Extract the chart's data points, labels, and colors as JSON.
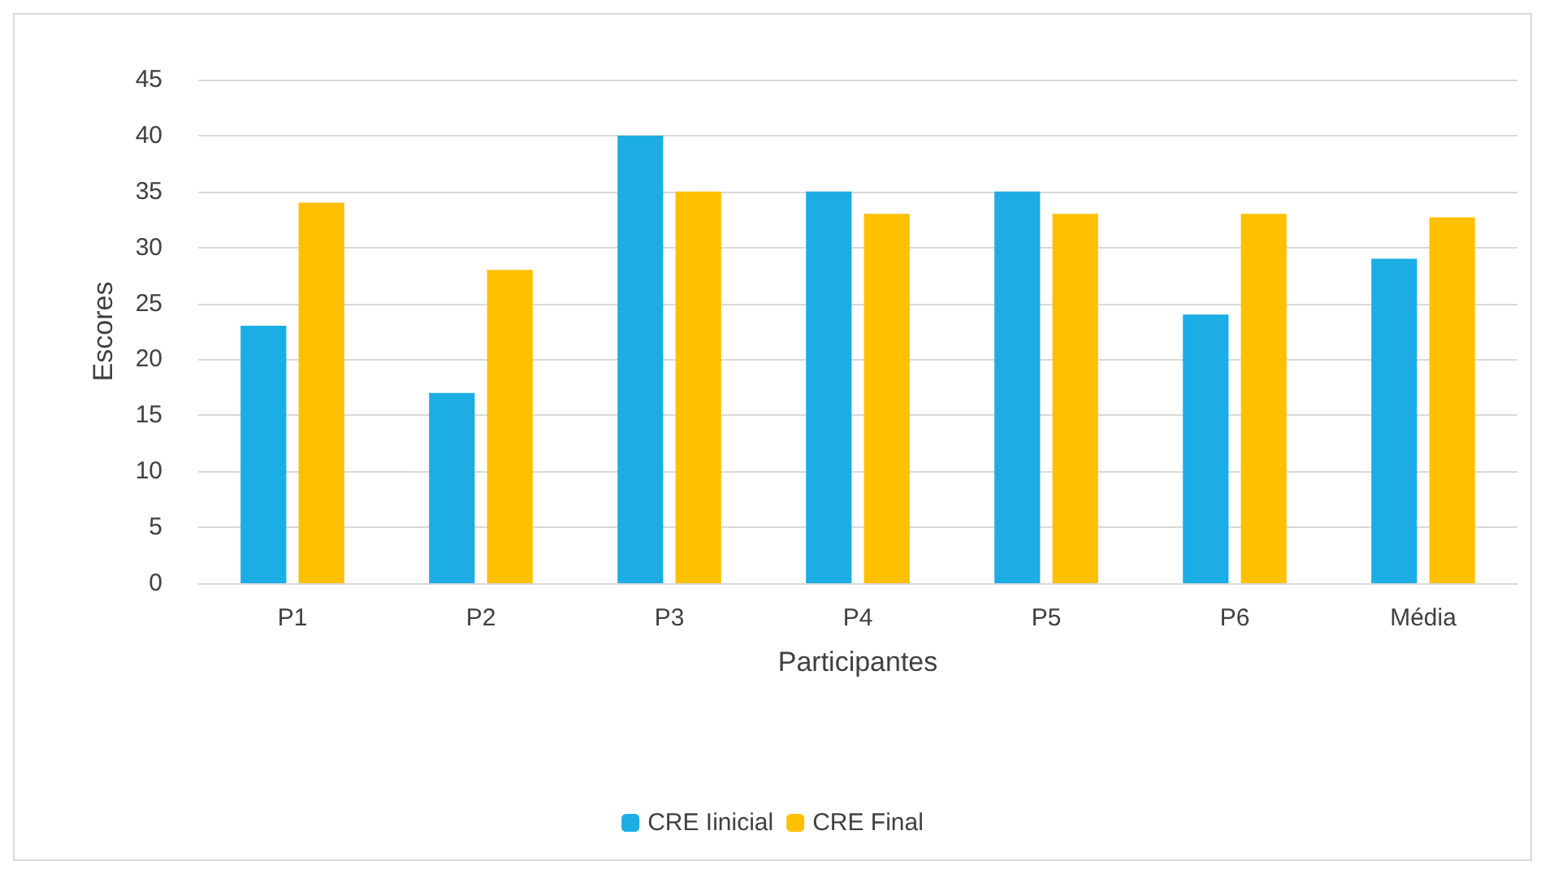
{
  "chart_data": {
    "type": "bar",
    "xlabel": "Participantes",
    "ylabel": "Escores",
    "categories": [
      "P1",
      "P2",
      "P3",
      "P4",
      "P5",
      "P6",
      "Média"
    ],
    "series": [
      {
        "name": "CRE Iinicial",
        "color": "#1cade4",
        "values": [
          23,
          17,
          40,
          35,
          35,
          24,
          29
        ]
      },
      {
        "name": "CRE Final",
        "color": "#ffc000",
        "values": [
          34,
          28,
          35,
          33,
          33,
          33,
          32.7
        ]
      }
    ],
    "ylim": [
      0,
      45
    ],
    "yticks": [
      0,
      5,
      10,
      15,
      20,
      25,
      30,
      35,
      40,
      45
    ],
    "grid": "y",
    "legend": "bottom"
  }
}
